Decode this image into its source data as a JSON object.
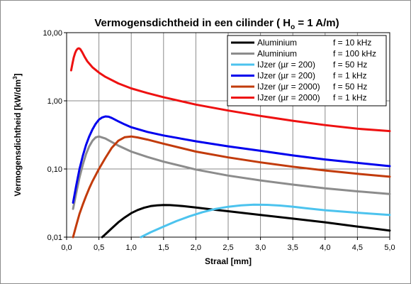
{
  "chart_data": {
    "type": "line",
    "title": "Vermogensdichtheid in een cilinder ( H",
    "title_sub": "o",
    "title_end": " = 1 A/m)",
    "xlabel": "Straal [mm]",
    "ylabel": "Vermogensdichtheid [kW/dm",
    "ylabel_sup": "3",
    "ylabel_end": "]",
    "xlim": [
      0,
      5
    ],
    "ylim": [
      0.01,
      10
    ],
    "yscale": "log",
    "grid": true,
    "legend_position": "top-right",
    "x_ticks": [
      {
        "value": 0,
        "label": "0,0"
      },
      {
        "value": 0.5,
        "label": "0,5"
      },
      {
        "value": 1,
        "label": "1,0"
      },
      {
        "value": 1.5,
        "label": "1,5"
      },
      {
        "value": 2,
        "label": "2,0"
      },
      {
        "value": 2.5,
        "label": "2,5"
      },
      {
        "value": 3,
        "label": "3,0"
      },
      {
        "value": 3.5,
        "label": "3,5"
      },
      {
        "value": 4,
        "label": "4,0"
      },
      {
        "value": 4.5,
        "label": "4,5"
      },
      {
        "value": 5,
        "label": "5,0"
      }
    ],
    "y_ticks": [
      {
        "value": 0.01,
        "label": "0,01"
      },
      {
        "value": 0.1,
        "label": "0,10"
      },
      {
        "value": 1,
        "label": "1,00"
      },
      {
        "value": 10,
        "label": "10,00"
      }
    ],
    "series": [
      {
        "name": "Aluminium",
        "freq": "f = 10 kHz",
        "color": "#000000",
        "x": [
          0.55,
          0.6,
          0.7,
          0.8,
          0.9,
          1.0,
          1.1,
          1.2,
          1.3,
          1.4,
          1.5,
          1.6,
          1.7,
          1.8,
          2.0,
          2.25,
          2.5,
          3.0,
          3.5,
          4.0,
          4.5,
          5.0
        ],
        "y": [
          0.01,
          0.011,
          0.0135,
          0.0165,
          0.0195,
          0.0225,
          0.025,
          0.027,
          0.0285,
          0.0293,
          0.0296,
          0.0295,
          0.0291,
          0.0285,
          0.0272,
          0.0255,
          0.024,
          0.0212,
          0.0187,
          0.0165,
          0.0143,
          0.0125
        ]
      },
      {
        "name": "Aluminium",
        "freq": "f = 100 kHz",
        "color": "#8c8c8c",
        "x": [
          0.1,
          0.15,
          0.2,
          0.25,
          0.3,
          0.35,
          0.4,
          0.45,
          0.5,
          0.6,
          0.7,
          0.8,
          1.0,
          1.25,
          1.5,
          2.0,
          2.5,
          3.0,
          3.5,
          4.0,
          4.5,
          5.0
        ],
        "y": [
          0.026,
          0.045,
          0.075,
          0.115,
          0.165,
          0.215,
          0.26,
          0.29,
          0.3,
          0.28,
          0.248,
          0.22,
          0.18,
          0.15,
          0.128,
          0.098,
          0.08,
          0.068,
          0.059,
          0.052,
          0.047,
          0.043
        ]
      },
      {
        "name": "IJzer (µr = 200)",
        "freq": "f = 50 Hz",
        "color": "#4cc3ee",
        "x": [
          1.15,
          1.3,
          1.5,
          1.7,
          1.9,
          2.1,
          2.3,
          2.5,
          2.7,
          2.9,
          3.1,
          3.3,
          3.5,
          3.7,
          4.0,
          4.5,
          5.0
        ],
        "y": [
          0.01,
          0.0118,
          0.0143,
          0.0172,
          0.0202,
          0.0232,
          0.0259,
          0.0279,
          0.0293,
          0.0299,
          0.0298,
          0.0291,
          0.028,
          0.0266,
          0.0248,
          0.0228,
          0.0212
        ]
      },
      {
        "name": "IJzer (µr = 200)",
        "freq": "f = 1 kHz",
        "color": "#0000ee",
        "x": [
          0.1,
          0.15,
          0.2,
          0.25,
          0.3,
          0.35,
          0.4,
          0.45,
          0.5,
          0.55,
          0.6,
          0.65,
          0.7,
          0.8,
          0.9,
          1.0,
          1.25,
          1.5,
          2.0,
          2.5,
          3.0,
          3.5,
          4.0,
          4.5,
          5.0
        ],
        "y": [
          0.032,
          0.058,
          0.1,
          0.155,
          0.225,
          0.3,
          0.38,
          0.46,
          0.53,
          0.57,
          0.59,
          0.585,
          0.56,
          0.5,
          0.45,
          0.41,
          0.35,
          0.31,
          0.255,
          0.215,
          0.185,
          0.158,
          0.138,
          0.123,
          0.11
        ]
      },
      {
        "name": "IJzer (µr = 2000)",
        "freq": "f = 50 Hz",
        "color": "#c23b0b",
        "x": [
          0.1,
          0.15,
          0.2,
          0.25,
          0.3,
          0.35,
          0.4,
          0.5,
          0.6,
          0.7,
          0.8,
          0.9,
          1.0,
          1.1,
          1.25,
          1.5,
          2.0,
          2.5,
          3.0,
          3.5,
          4.0,
          4.5,
          5.0
        ],
        "y": [
          0.01,
          0.015,
          0.022,
          0.03,
          0.04,
          0.052,
          0.066,
          0.1,
          0.145,
          0.205,
          0.26,
          0.293,
          0.3,
          0.29,
          0.27,
          0.235,
          0.18,
          0.148,
          0.125,
          0.108,
          0.095,
          0.085,
          0.077
        ]
      },
      {
        "name": "IJzer (µr = 2000)",
        "freq": "f = 1 kHz",
        "color": "#ee1111",
        "x": [
          0.07,
          0.09,
          0.11,
          0.13,
          0.15,
          0.17,
          0.19,
          0.21,
          0.24,
          0.28,
          0.32,
          0.4,
          0.5,
          0.6,
          0.8,
          1.0,
          1.25,
          1.5,
          2.0,
          2.5,
          3.0,
          3.5,
          4.0,
          4.5,
          5.0
        ],
        "y": [
          2.8,
          3.5,
          4.3,
          5.0,
          5.5,
          5.8,
          5.9,
          5.75,
          5.2,
          4.4,
          3.8,
          3.1,
          2.6,
          2.25,
          1.8,
          1.52,
          1.3,
          1.13,
          0.88,
          0.72,
          0.6,
          0.51,
          0.44,
          0.39,
          0.36
        ]
      }
    ]
  }
}
